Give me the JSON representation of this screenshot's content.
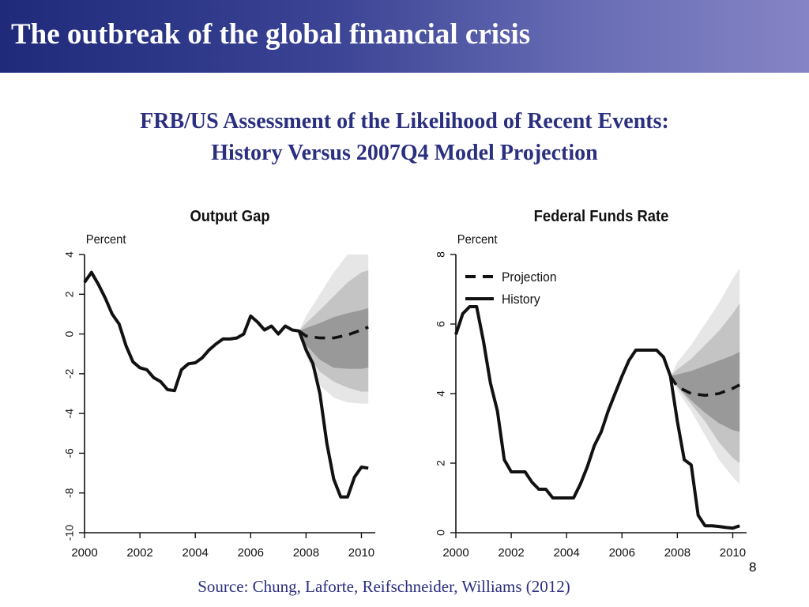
{
  "header": {
    "title": "The outbreak of the global financial crisis"
  },
  "subtitle": {
    "line1": "FRB/US Assessment of the Likelihood of Recent Events:",
    "line2": "History Versus 2007Q4 Model Projection"
  },
  "footer": {
    "source": "Source: Chung, Laforte, Reifschneider, Williams (2012)",
    "slide_number": "8"
  },
  "colors": {
    "banner_start": "#1f2a7a",
    "banner_end": "#8584c6",
    "heading_text": "#2a2f7f",
    "band_outer": "#e6e6e6",
    "band_mid": "#c4c4c4",
    "band_inner": "#999999",
    "line": "#111111"
  },
  "chart_data": [
    {
      "type": "line",
      "title": "Output Gap",
      "ylabel": "Percent",
      "xlabel": "",
      "xlim": [
        2000,
        2010.5
      ],
      "ylim": [
        -10,
        4
      ],
      "x_ticks": [
        "2000",
        "2002",
        "2004",
        "2006",
        "2008",
        "2010"
      ],
      "y_ticks": [
        "-10",
        "-8",
        "-6",
        "-4",
        "-2",
        "0",
        "2",
        "4"
      ],
      "grid": false,
      "legend": null,
      "series": [
        {
          "role": "history",
          "x": [
            2000,
            2000.25,
            2000.5,
            2000.75,
            2001,
            2001.25,
            2001.5,
            2001.75,
            2002,
            2002.25,
            2002.5,
            2002.75,
            2003,
            2003.25,
            2003.5,
            2003.75,
            2004,
            2004.25,
            2004.5,
            2004.75,
            2005,
            2005.25,
            2005.5,
            2005.75,
            2006,
            2006.25,
            2006.5,
            2006.75,
            2007,
            2007.25,
            2007.5,
            2007.75,
            2008,
            2008.25,
            2008.5,
            2008.75,
            2009,
            2009.25,
            2009.5,
            2009.75,
            2010,
            2010.25
          ],
          "y": [
            2.6,
            3.1,
            2.5,
            1.8,
            1.0,
            0.5,
            -0.6,
            -1.4,
            -1.7,
            -1.8,
            -2.2,
            -2.4,
            -2.8,
            -2.85,
            -1.8,
            -1.5,
            -1.45,
            -1.2,
            -0.8,
            -0.5,
            -0.25,
            -0.25,
            -0.2,
            0.0,
            0.9,
            0.6,
            0.2,
            0.4,
            0.0,
            0.4,
            0.2,
            0.15,
            -0.8,
            -1.5,
            -3.0,
            -5.5,
            -7.3,
            -8.2,
            -8.2,
            -7.2,
            -6.7,
            -6.75
          ]
        },
        {
          "role": "projection",
          "x": [
            2007.75,
            2008,
            2008.5,
            2009,
            2009.5,
            2010,
            2010.25
          ],
          "y": [
            0.15,
            -0.1,
            -0.2,
            -0.2,
            -0.05,
            0.2,
            0.35
          ]
        }
      ],
      "bands": {
        "x": [
          2007.75,
          2008,
          2008.5,
          2009,
          2009.5,
          2010,
          2010.25
        ],
        "outer_upper": [
          0.15,
          0.9,
          2.0,
          3.1,
          4.0,
          4.0,
          4.0
        ],
        "outer_lower": [
          0.15,
          -1.1,
          -2.6,
          -3.2,
          -3.45,
          -3.5,
          -3.5
        ],
        "mid_upper": [
          0.15,
          0.55,
          1.2,
          1.9,
          2.6,
          3.1,
          3.2
        ],
        "mid_lower": [
          0.15,
          -0.9,
          -1.9,
          -2.4,
          -2.7,
          -2.9,
          -2.9
        ],
        "inner_upper": [
          0.15,
          0.3,
          0.55,
          0.85,
          1.05,
          1.2,
          1.3
        ],
        "inner_lower": [
          0.15,
          -0.55,
          -1.3,
          -1.7,
          -1.75,
          -1.75,
          -1.7
        ]
      }
    },
    {
      "type": "line",
      "title": "Federal Funds Rate",
      "ylabel": "Percent",
      "xlabel": "",
      "xlim": [
        2000,
        2010.5
      ],
      "ylim": [
        0,
        8
      ],
      "x_ticks": [
        "2000",
        "2002",
        "2004",
        "2006",
        "2008",
        "2010"
      ],
      "y_ticks": [
        "0",
        "2",
        "4",
        "6",
        "8"
      ],
      "grid": false,
      "legend": {
        "position": "top-left",
        "entries": [
          "Projection",
          "History"
        ]
      },
      "series": [
        {
          "name": "History",
          "role": "history",
          "x": [
            2000,
            2000.25,
            2000.5,
            2000.75,
            2001,
            2001.25,
            2001.5,
            2001.75,
            2002,
            2002.25,
            2002.5,
            2002.75,
            2003,
            2003.25,
            2003.5,
            2003.75,
            2004,
            2004.25,
            2004.5,
            2004.75,
            2005,
            2005.25,
            2005.5,
            2005.75,
            2006,
            2006.25,
            2006.5,
            2006.75,
            2007,
            2007.25,
            2007.5,
            2007.75,
            2008,
            2008.25,
            2008.5,
            2008.75,
            2009,
            2009.25,
            2009.5,
            2009.75,
            2010,
            2010.25
          ],
          "y": [
            5.7,
            6.3,
            6.5,
            6.5,
            5.5,
            4.3,
            3.5,
            2.1,
            1.75,
            1.75,
            1.75,
            1.45,
            1.25,
            1.25,
            1.0,
            1.0,
            1.0,
            1.0,
            1.4,
            1.9,
            2.5,
            2.9,
            3.5,
            4.0,
            4.5,
            4.95,
            5.25,
            5.25,
            5.25,
            5.25,
            5.05,
            4.5,
            3.2,
            2.1,
            1.95,
            0.5,
            0.2,
            0.2,
            0.18,
            0.15,
            0.13,
            0.2
          ]
        },
        {
          "name": "Projection",
          "role": "projection",
          "x": [
            2007.75,
            2008,
            2008.5,
            2009,
            2009.5,
            2010,
            2010.25
          ],
          "y": [
            4.5,
            4.2,
            4.0,
            3.95,
            4.0,
            4.15,
            4.25
          ]
        }
      ],
      "bands": {
        "x": [
          2007.75,
          2008,
          2008.5,
          2009,
          2009.5,
          2010,
          2010.25
        ],
        "outer_upper": [
          4.5,
          4.9,
          5.4,
          6.0,
          6.6,
          7.3,
          7.6
        ],
        "outer_lower": [
          4.5,
          4.1,
          3.5,
          2.8,
          2.1,
          1.6,
          1.4
        ],
        "mid_upper": [
          4.5,
          4.7,
          5.0,
          5.4,
          5.8,
          6.3,
          6.6
        ],
        "mid_lower": [
          4.5,
          4.2,
          3.7,
          3.2,
          2.6,
          2.15,
          2.0
        ],
        "inner_upper": [
          4.5,
          4.55,
          4.65,
          4.8,
          4.95,
          5.1,
          5.2
        ],
        "inner_lower": [
          4.5,
          4.2,
          3.8,
          3.45,
          3.15,
          2.95,
          2.9
        ]
      }
    }
  ]
}
